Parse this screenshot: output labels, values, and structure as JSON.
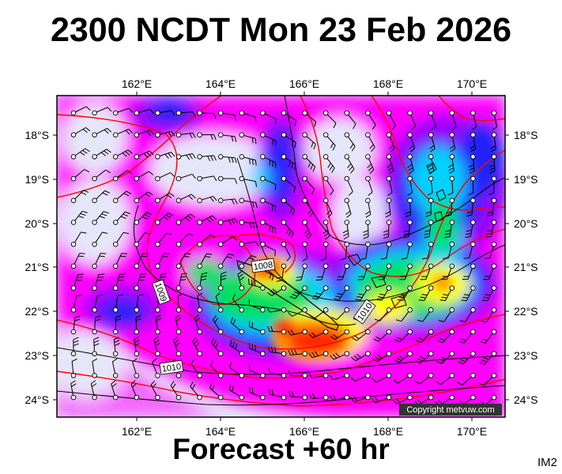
{
  "title": "2300 NCDT Mon 23 Feb 2026",
  "footer": "Forecast +60 hr",
  "corner_label": "IM2",
  "copyright": "Copyright metvuw.com",
  "lon_ticks": [
    "162°E",
    "164°E",
    "166°E",
    "168°E",
    "170°E"
  ],
  "lat_ticks": [
    "18°S",
    "19°S",
    "20°S",
    "21°S",
    "22°S",
    "23°S",
    "24°S"
  ],
  "isobar_labels": [
    "1008",
    "1009",
    "1010",
    "1010"
  ],
  "colors": {
    "frame": "#000000",
    "calm": "#e6e6fa",
    "magenta": "#ff00ff",
    "purple": "#9b00ff",
    "blue": "#2020ff",
    "cyan": "#00d2ff",
    "green": "#00e060",
    "yellow": "#ffff00",
    "orange": "#ff9000",
    "red": "#ff2a00",
    "isobar": "#ff0000",
    "coast": "#000000"
  }
}
